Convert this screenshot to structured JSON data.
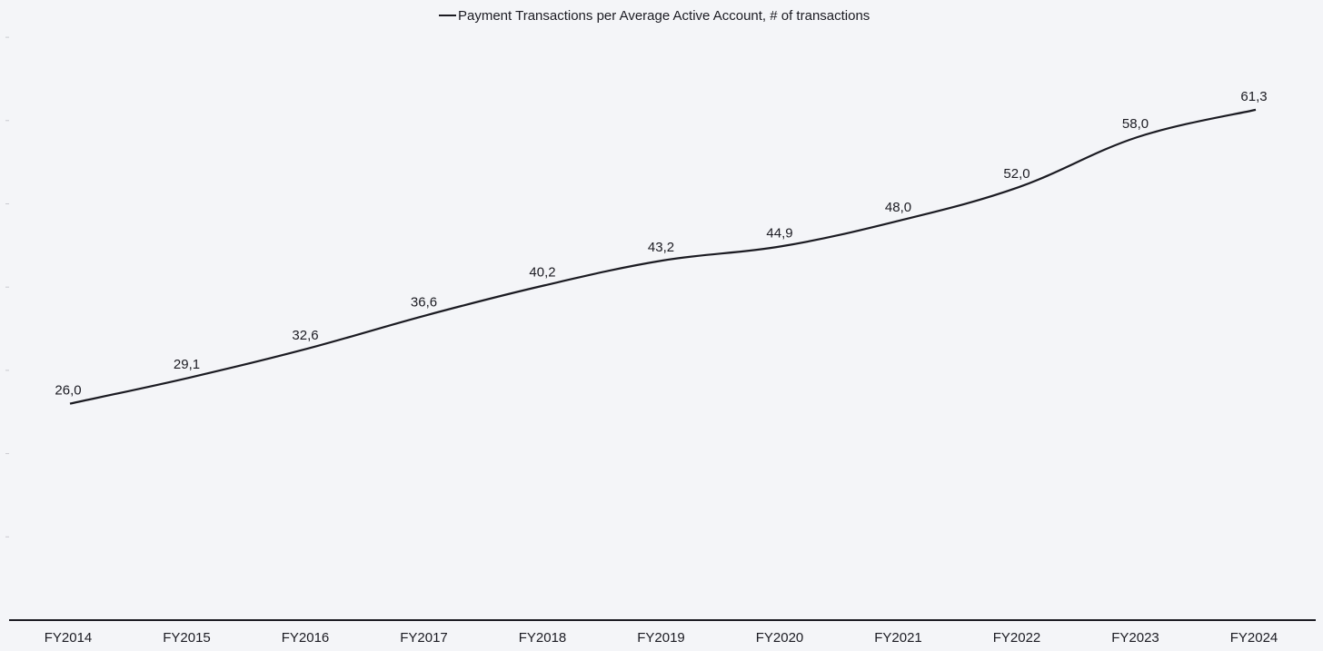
{
  "chart_data": {
    "type": "line",
    "categories": [
      "FY2014",
      "FY2015",
      "FY2016",
      "FY2017",
      "FY2018",
      "FY2019",
      "FY2020",
      "FY2021",
      "FY2022",
      "FY2023",
      "FY2024"
    ],
    "series": [
      {
        "name": "Payment Transactions per Average Active Account, # of transactions",
        "values": [
          26.0,
          29.1,
          32.6,
          36.6,
          40.2,
          43.2,
          44.9,
          48.0,
          52.0,
          58.0,
          61.3
        ],
        "labels": [
          "26,0",
          "29,1",
          "32,6",
          "36,6",
          "40,2",
          "43,2",
          "44,9",
          "48,0",
          "52,0",
          "58,0",
          "61,3"
        ],
        "color": "#1b1b22"
      }
    ],
    "legend": "top-center",
    "ylim": [
      0,
      70
    ],
    "grid": false,
    "xlabel": "",
    "ylabel": ""
  }
}
